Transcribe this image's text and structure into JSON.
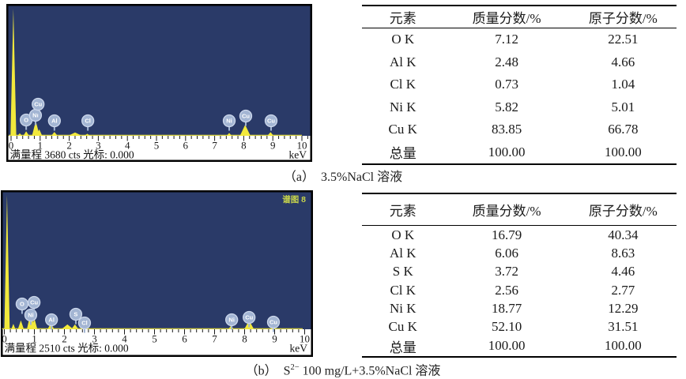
{
  "colors": {
    "plot_bg": "#2a3a68",
    "peak_yellow": "#f2e93c",
    "label_circle": "#a3b5d3",
    "label_circle_rim": "#cdd8ec",
    "label_text": "#ffffff",
    "corner_label": "#c9d64b",
    "axis_text": "#1a1a1a",
    "border": "#000000"
  },
  "tables": [
    {
      "headers": [
        "元素",
        "质量分数/%",
        "原子分数/%"
      ],
      "rows": [
        [
          "O K",
          "7.12",
          "22.51"
        ],
        [
          "Al K",
          "2.48",
          "4.66"
        ],
        [
          "Cl K",
          "0.73",
          "1.04"
        ],
        [
          "Ni K",
          "5.82",
          "5.01"
        ],
        [
          "Cu K",
          "83.85",
          "66.78"
        ],
        [
          "总量",
          "100.00",
          "100.00"
        ]
      ]
    },
    {
      "headers": [
        "元素",
        "质量分数/%",
        "原子分数/%"
      ],
      "rows": [
        [
          "O K",
          "16.79",
          "40.34"
        ],
        [
          "Al K",
          "6.06",
          "8.63"
        ],
        [
          "S K",
          "3.72",
          "4.46"
        ],
        [
          "Cl K",
          "2.56",
          "2.77"
        ],
        [
          "Ni K",
          "18.77",
          "12.29"
        ],
        [
          "Cu K",
          "52.10",
          "31.51"
        ],
        [
          "总量",
          "100.00",
          "100.00"
        ]
      ]
    }
  ],
  "captions": [
    {
      "segments": [
        {
          "t": "（a）　3.5%NaCl 溶液"
        }
      ]
    },
    {
      "segments": [
        {
          "t": "（b）　S"
        },
        {
          "t": "2−",
          "sup": true
        },
        {
          "t": " 100 mg/L+3.5%NaCl 溶液"
        }
      ]
    }
  ],
  "chart_data": [
    {
      "type": "area",
      "subtype": "EDS-spectrum",
      "xlabel": "keV",
      "xlim": [
        0,
        10
      ],
      "x_ticks": [
        0,
        1,
        2,
        3,
        4,
        5,
        6,
        7,
        8,
        9,
        10
      ],
      "minor_tick_step_kev": 0.2,
      "full_scale_cts": 3680,
      "footer_left": "满量程 3680 cts 光标:  0.000",
      "footer_right": "keV",
      "corner_label": "",
      "intensity_units": "fraction of full scale (3680 cts)",
      "peaks": [
        {
          "kev": 0.08,
          "frac": 0.98,
          "hw": 0.1
        },
        {
          "kev": 0.3,
          "frac": 0.02,
          "hw": 0.08
        },
        {
          "kev": 0.52,
          "frac": 0.035,
          "hw": 0.1
        },
        {
          "kev": 0.85,
          "frac": 0.115,
          "hw": 0.13
        },
        {
          "kev": 0.97,
          "frac": 0.05,
          "hw": 0.1
        },
        {
          "kev": 1.49,
          "frac": 0.03,
          "hw": 0.11
        },
        {
          "kev": 2.2,
          "frac": 0.026,
          "hw": 0.24
        },
        {
          "kev": 2.62,
          "frac": 0.016,
          "hw": 0.1
        },
        {
          "kev": 7.5,
          "frac": 0.022,
          "hw": 0.09
        },
        {
          "kev": 8.05,
          "frac": 0.085,
          "hw": 0.18
        },
        {
          "kev": 8.92,
          "frac": 0.028,
          "hw": 0.11
        }
      ],
      "element_labels": [
        {
          "el": "O",
          "kev": 0.52,
          "lift": 20
        },
        {
          "el": "Ni",
          "kev": 0.84,
          "lift": 26
        },
        {
          "el": "Cu",
          "kev": 0.93,
          "lift": 40
        },
        {
          "el": "Al",
          "kev": 1.49,
          "lift": 19
        },
        {
          "el": "Cl",
          "kev": 2.64,
          "lift": 19
        },
        {
          "el": "Ni",
          "kev": 7.5,
          "lift": 19
        },
        {
          "el": "Cu",
          "kev": 8.07,
          "lift": 25
        },
        {
          "el": "Cu",
          "kev": 8.94,
          "lift": 19
        }
      ]
    },
    {
      "type": "area",
      "subtype": "EDS-spectrum",
      "xlabel": "keV",
      "xlim": [
        0,
        10
      ],
      "x_ticks": [
        0,
        1,
        2,
        3,
        4,
        5,
        6,
        7,
        8,
        9,
        10
      ],
      "minor_tick_step_kev": 0.2,
      "full_scale_cts": 2510,
      "footer_left": "满量程 2510 cts 光标:  0.000",
      "footer_right": "keV",
      "corner_label": "谱图 8",
      "intensity_units": "fraction of full scale (2510 cts)",
      "peaks": [
        {
          "kev": 0.09,
          "frac": 0.98,
          "hw": 0.09
        },
        {
          "kev": 0.3,
          "frac": 0.04,
          "hw": 0.07
        },
        {
          "kev": 0.55,
          "frac": 0.065,
          "hw": 0.1
        },
        {
          "kev": 0.88,
          "frac": 0.125,
          "hw": 0.13
        },
        {
          "kev": 1.0,
          "frac": 0.08,
          "hw": 0.1
        },
        {
          "kev": 1.55,
          "frac": 0.045,
          "hw": 0.11
        },
        {
          "kev": 2.1,
          "frac": 0.035,
          "hw": 0.2
        },
        {
          "kev": 2.35,
          "frac": 0.035,
          "hw": 0.12
        },
        {
          "kev": 2.65,
          "frac": 0.022,
          "hw": 0.1
        },
        {
          "kev": 7.55,
          "frac": 0.028,
          "hw": 0.09
        },
        {
          "kev": 8.15,
          "frac": 0.065,
          "hw": 0.16
        },
        {
          "kev": 8.95,
          "frac": 0.015,
          "hw": 0.09
        }
      ],
      "element_labels": [
        {
          "el": "O",
          "kev": 0.59,
          "lift": 32
        },
        {
          "el": "Ni",
          "kev": 0.88,
          "lift": 18
        },
        {
          "el": "Cu",
          "kev": 0.99,
          "lift": 34
        },
        {
          "el": "Al",
          "kev": 1.57,
          "lift": 12
        },
        {
          "el": "S",
          "kev": 2.38,
          "lift": 19
        },
        {
          "el": "Cl",
          "kev": 2.67,
          "lift": 8
        },
        {
          "el": "Ni",
          "kev": 7.57,
          "lift": 12
        },
        {
          "el": "Cu",
          "kev": 8.15,
          "lift": 15
        },
        {
          "el": "Cu",
          "kev": 8.96,
          "lift": 9
        }
      ]
    }
  ]
}
